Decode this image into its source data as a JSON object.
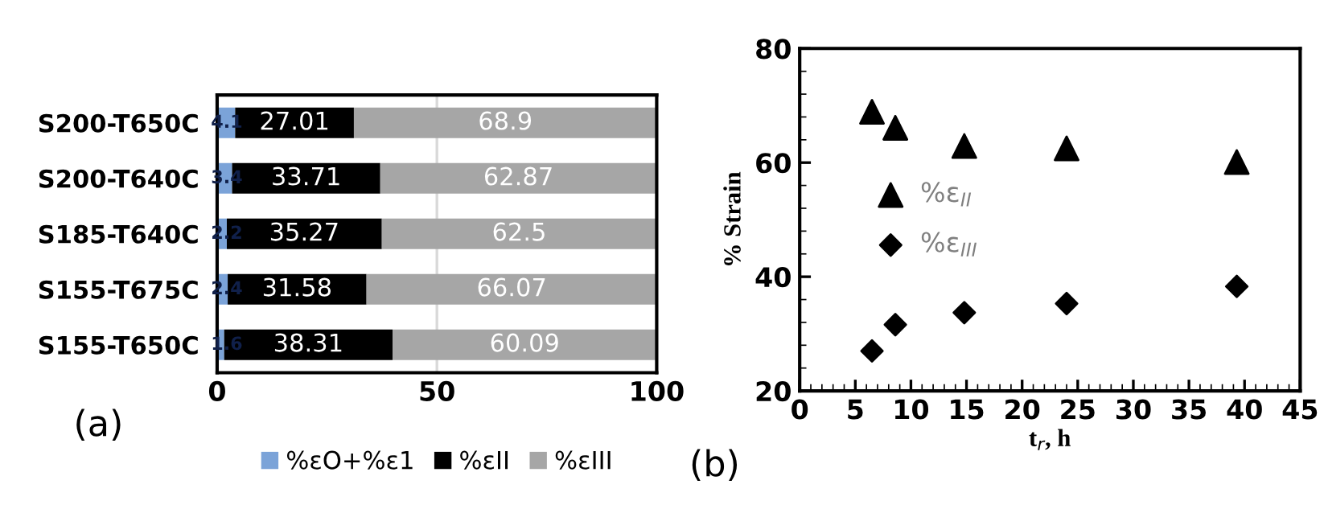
{
  "chart_data": [
    {
      "type": "bar",
      "orientation": "horizontal",
      "stacked": true,
      "categories": [
        "S200-T650C",
        "S200-T640C",
        "S185-T640C",
        "S155-T675C",
        "S155-T650C"
      ],
      "series": [
        {
          "name": "%εO+%ε1",
          "color": "#7ba3d8",
          "values": [
            4.1,
            3.4,
            2.2,
            2.4,
            1.6
          ]
        },
        {
          "name": "%εII",
          "color": "#000000",
          "values": [
            27.01,
            33.71,
            35.27,
            31.58,
            38.31
          ]
        },
        {
          "name": "%εIII",
          "color": "#a6a6a6",
          "values": [
            68.9,
            62.87,
            62.5,
            66.07,
            60.09
          ]
        }
      ],
      "xlim": [
        0,
        100
      ],
      "xticks": [
        0,
        50,
        100
      ],
      "grid": "x",
      "data_labels": true,
      "legend": "bottom",
      "annotations": [
        "(a)"
      ]
    },
    {
      "type": "scatter",
      "xlabel": "t$_{r}$, h",
      "ylabel": "% Strain",
      "series": [
        {
          "name": "%ε$_{II}$",
          "color": "#000000",
          "marker": "triangle",
          "x": [
            6.5,
            8.6,
            14.8,
            24.0,
            39.3
          ],
          "values": [
            68.9,
            66.1,
            62.9,
            62.5,
            60.1
          ]
        },
        {
          "name": "%ε$_{III}$",
          "color": "#000000",
          "marker": "diamond",
          "x": [
            6.5,
            8.6,
            14.8,
            24.0,
            39.3
          ],
          "values": [
            27.0,
            31.6,
            33.7,
            35.3,
            38.3
          ]
        }
      ],
      "xlim": [
        0,
        45
      ],
      "xticks": [
        0,
        5,
        10,
        15,
        20,
        25,
        30,
        35,
        40,
        45
      ],
      "ylim": [
        20,
        80
      ],
      "yticks": [
        20,
        40,
        60,
        80
      ],
      "grid": false,
      "legend": "left",
      "annotations": [
        "(b)"
      ]
    }
  ]
}
